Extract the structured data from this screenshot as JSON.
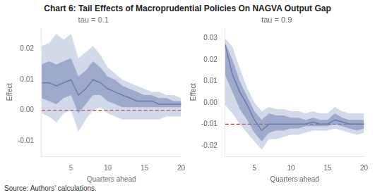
{
  "title": "Chart 6: Tail Effects of Macroprudential Policies On NAGVA Output Gap",
  "annotations": [
    "Source: Authors’ calculations."
  ],
  "chart_data": [
    {
      "type": "line",
      "title": "tau = 0.1",
      "xlabel": "Quarters ahead",
      "ylabel": "Effect",
      "x": [
        1,
        2,
        3,
        4,
        5,
        6,
        7,
        8,
        9,
        10,
        11,
        12,
        13,
        14,
        15,
        16,
        17,
        18,
        19,
        20
      ],
      "series": [
        {
          "color": "#3d5085",
          "values": [
            0.009,
            0.009,
            0.008,
            0.009,
            0.01,
            0.005,
            0.007,
            0.01,
            0.009,
            0.007,
            0.006,
            0.005,
            0.004,
            0.003,
            0.003,
            0.003,
            0.002,
            0.002,
            0.002,
            0.002
          ],
          "bands": [
            {
              "color": "#8fa0c8",
              "lower": [
                -0.001,
                -0.002,
                -0.004,
                -0.001,
                0.0,
                -0.007,
                -0.003,
                0.0,
                0.001,
                -0.001,
                -0.002,
                -0.003,
                -0.003,
                -0.003,
                -0.003,
                -0.003,
                -0.003,
                -0.002,
                -0.002,
                -0.002
              ],
              "upper": [
                0.021,
                0.022,
                0.025,
                0.023,
                0.025,
                0.017,
                0.019,
                0.021,
                0.018,
                0.014,
                0.012,
                0.01,
                0.009,
                0.008,
                0.007,
                0.006,
                0.006,
                0.005,
                0.005,
                0.004
              ]
            },
            {
              "color": "#6272a8",
              "lower": [
                0.004,
                0.003,
                0.002,
                0.004,
                0.005,
                -0.001,
                0.002,
                0.005,
                0.005,
                0.003,
                0.002,
                0.001,
                0.001,
                0.001,
                0.001,
                0.001,
                0.001,
                0.001,
                0.001,
                0.001
              ],
              "upper": [
                0.015,
                0.016,
                0.015,
                0.016,
                0.017,
                0.011,
                0.013,
                0.016,
                0.014,
                0.011,
                0.01,
                0.008,
                0.007,
                0.006,
                0.005,
                0.005,
                0.004,
                0.004,
                0.003,
                0.003
              ]
            }
          ]
        }
      ],
      "reference_line": {
        "value": 0.0,
        "color": "#cc2222",
        "line_style": "dashed"
      },
      "xlim": [
        1,
        20
      ],
      "xticks": [
        5,
        10,
        15,
        20
      ],
      "ylim": [
        -0.015,
        0.027
      ],
      "yticks": [
        {
          "value": -0.01,
          "label": "-0.01"
        },
        {
          "value": 0.0,
          "label": "0.00"
        },
        {
          "value": 0.01,
          "label": "0.01"
        },
        {
          "value": 0.02,
          "label": "0.02"
        }
      ],
      "grid": false
    },
    {
      "type": "line",
      "title": "tau = 0.9",
      "xlabel": "Quarters ahead",
      "ylabel": "Effect",
      "x": [
        1,
        2,
        3,
        4,
        5,
        6,
        7,
        8,
        9,
        10,
        11,
        12,
        13,
        14,
        15,
        16,
        17,
        18,
        19,
        20
      ],
      "series": [
        {
          "color": "#3d5085",
          "values": [
            0.027,
            0.013,
            0.005,
            -0.001,
            -0.008,
            -0.013,
            -0.01,
            -0.01,
            -0.01,
            -0.01,
            -0.01,
            -0.01,
            -0.009,
            -0.01,
            -0.01,
            -0.008,
            -0.009,
            -0.01,
            -0.01,
            -0.01
          ],
          "bands": [
            {
              "color": "#8fa0c8",
              "lower": [
                -0.001,
                -0.005,
                -0.01,
                -0.014,
                -0.018,
                -0.022,
                -0.017,
                -0.017,
                -0.016,
                -0.015,
                -0.015,
                -0.014,
                -0.013,
                -0.013,
                -0.013,
                -0.012,
                -0.013,
                -0.014,
                -0.015,
                -0.014
              ],
              "upper": [
                0.03,
                0.026,
                0.016,
                0.007,
                0.0,
                -0.004,
                -0.002,
                -0.003,
                -0.003,
                -0.004,
                -0.004,
                -0.005,
                -0.004,
                -0.005,
                -0.005,
                -0.002,
                -0.004,
                -0.005,
                -0.005,
                -0.005
              ]
            },
            {
              "color": "#6272a8",
              "lower": [
                0.013,
                0.005,
                -0.003,
                -0.008,
                -0.014,
                -0.018,
                -0.014,
                -0.013,
                -0.013,
                -0.012,
                -0.012,
                -0.011,
                -0.011,
                -0.011,
                -0.011,
                -0.01,
                -0.011,
                -0.012,
                -0.013,
                -0.012
              ],
              "upper": [
                0.028,
                0.02,
                0.01,
                0.003,
                -0.004,
                -0.008,
                -0.005,
                -0.006,
                -0.006,
                -0.007,
                -0.007,
                -0.008,
                -0.007,
                -0.008,
                -0.008,
                -0.005,
                -0.007,
                -0.008,
                -0.008,
                -0.008
              ]
            }
          ]
        }
      ],
      "reference_line": {
        "value": -0.01,
        "color": "#cc2222",
        "line_style": "dashed"
      },
      "xlim": [
        1,
        20
      ],
      "xticks": [
        5,
        10,
        15,
        20
      ],
      "ylim": [
        -0.025,
        0.035
      ],
      "yticks": [
        {
          "value": -0.02,
          "label": "-0.02"
        },
        {
          "value": -0.01,
          "label": "-0.01"
        },
        {
          "value": 0.0,
          "label": "0.00"
        },
        {
          "value": 0.01,
          "label": "0.01"
        },
        {
          "value": 0.02,
          "label": "0.02"
        },
        {
          "value": 0.03,
          "label": "0.03"
        }
      ],
      "grid": false
    }
  ]
}
